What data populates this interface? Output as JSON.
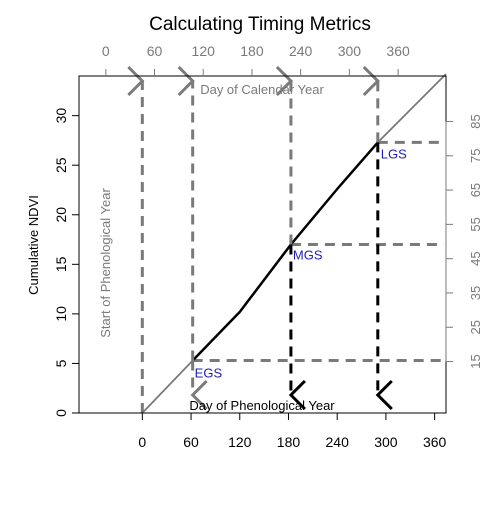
{
  "chart_data": {
    "type": "line",
    "title": "Calculating Timing Metrics",
    "ylabel": "Cumulative NDVI",
    "bottom_axis": {
      "label": "Day of Phenological Year",
      "ticks": [
        "0",
        "60",
        "120",
        "180",
        "240",
        "300",
        "360"
      ],
      "tick_values": [
        0,
        60,
        120,
        180,
        240,
        300,
        360
      ],
      "range": [
        -78,
        374
      ]
    },
    "top_axis": {
      "label": "Day of Calendar Year",
      "ticks": [
        "0",
        "60",
        "120",
        "180",
        "240",
        "300",
        "360"
      ],
      "tick_values": [
        0,
        60,
        120,
        180,
        240,
        300,
        360
      ],
      "offset_days": 45
    },
    "left_axis": {
      "ticks": [
        "0",
        "5",
        "10",
        "15",
        "20",
        "25",
        "30"
      ],
      "tick_values": [
        0,
        5,
        10,
        15,
        20,
        25,
        30
      ],
      "range": [
        0,
        34
      ]
    },
    "right_axis": {
      "ticks": [
        "15",
        "25",
        "35",
        "45",
        "55",
        "65",
        "75",
        "85"
      ],
      "tick_values": [
        15,
        25,
        35,
        45,
        55,
        65,
        75,
        85
      ],
      "percent_scale": 2.89
    },
    "series": [
      {
        "role": "full-season",
        "color": "#7a7a7a",
        "x": [
          0,
          62,
          120,
          183,
          240,
          290,
          374
        ],
        "y": [
          0,
          5.3,
          10.2,
          17.0,
          22.6,
          27.3,
          34.2
        ]
      },
      {
        "role": "growing-season",
        "color": "#000000",
        "x": [
          62,
          120,
          183,
          240,
          290
        ],
        "y": [
          5.3,
          10.2,
          17.0,
          22.6,
          27.3
        ]
      }
    ],
    "annotations": {
      "start_label": "Start of Phenological Year",
      "start_x": 0,
      "metrics": [
        {
          "label": "EGS",
          "x": 62,
          "y": 5.3
        },
        {
          "label": "MGS",
          "x": 183,
          "y": 17.0
        },
        {
          "label": "LGS",
          "x": 290,
          "y": 27.3
        }
      ]
    },
    "colors": {
      "gray": "#7a7a7a",
      "black": "#000000",
      "label_blue": "#1f1fb4"
    },
    "grid": false
  }
}
